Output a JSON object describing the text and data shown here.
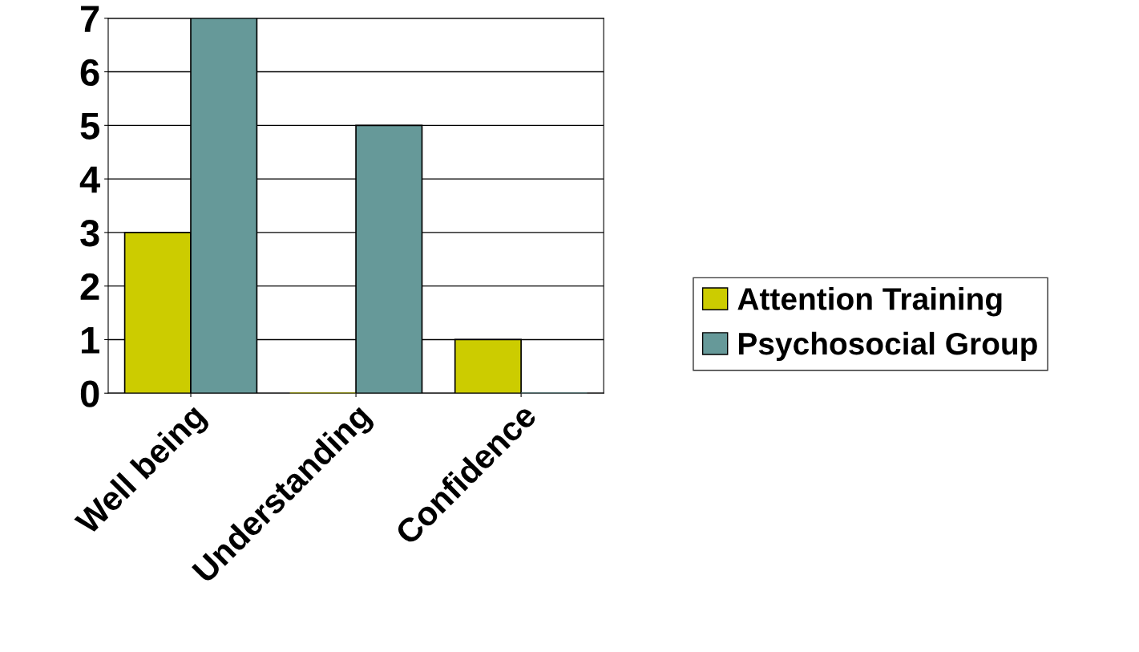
{
  "chart_data": {
    "type": "bar",
    "categories": [
      "Well being",
      "Understanding",
      "Confidence"
    ],
    "series": [
      {
        "name": "Attention Training",
        "color": "#cccc00",
        "values": [
          3,
          0,
          1
        ]
      },
      {
        "name": "Psychosocial Group",
        "color": "#669999",
        "values": [
          7,
          5,
          0
        ]
      }
    ],
    "ylim": [
      0,
      7
    ],
    "yticks": [
      0,
      1,
      2,
      3,
      4,
      5,
      6,
      7
    ],
    "grid": "y",
    "legend": "right"
  }
}
